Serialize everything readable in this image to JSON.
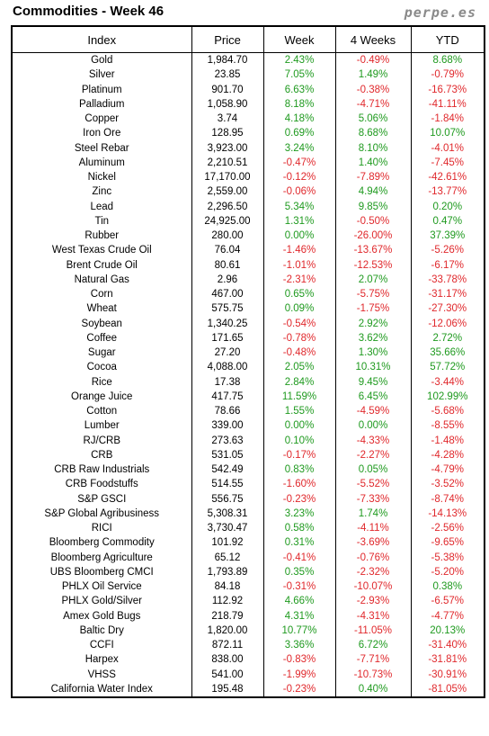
{
  "header": {
    "title": "Commodities - Week 46",
    "brand": "perpe.es"
  },
  "table": {
    "columns": [
      "Index",
      "Price",
      "Week",
      "4 Weeks",
      "YTD"
    ],
    "rows": [
      [
        "Gold",
        "1,984.70",
        "2.43%",
        "-0.49%",
        "8.68%"
      ],
      [
        "Silver",
        "23.85",
        "7.05%",
        "1.49%",
        "-0.79%"
      ],
      [
        "Platinum",
        "901.70",
        "6.63%",
        "-0.38%",
        "-16.73%"
      ],
      [
        "Palladium",
        "1,058.90",
        "8.18%",
        "-4.71%",
        "-41.11%"
      ],
      [
        "Copper",
        "3.74",
        "4.18%",
        "5.06%",
        "-1.84%"
      ],
      [
        "Iron Ore",
        "128.95",
        "0.69%",
        "8.68%",
        "10.07%"
      ],
      [
        "Steel Rebar",
        "3,923.00",
        "3.24%",
        "8.10%",
        "-4.01%"
      ],
      [
        "Aluminum",
        "2,210.51",
        "-0.47%",
        "1.40%",
        "-7.45%"
      ],
      [
        "Nickel",
        "17,170.00",
        "-0.12%",
        "-7.89%",
        "-42.61%"
      ],
      [
        "Zinc",
        "2,559.00",
        "-0.06%",
        "4.94%",
        "-13.77%"
      ],
      [
        "Lead",
        "2,296.50",
        "5.34%",
        "9.85%",
        "0.20%"
      ],
      [
        "Tin",
        "24,925.00",
        "1.31%",
        "-0.50%",
        "0.47%"
      ],
      [
        "Rubber",
        "280.00",
        "0.00%",
        "-26.00%",
        "37.39%"
      ],
      [
        "West Texas Crude Oil",
        "76.04",
        "-1.46%",
        "-13.67%",
        "-5.26%"
      ],
      [
        "Brent Crude Oil",
        "80.61",
        "-1.01%",
        "-12.53%",
        "-6.17%"
      ],
      [
        "Natural Gas",
        "2.96",
        "-2.31%",
        "2.07%",
        "-33.78%"
      ],
      [
        "Corn",
        "467.00",
        "0.65%",
        "-5.75%",
        "-31.17%"
      ],
      [
        "Wheat",
        "575.75",
        "0.09%",
        "-1.75%",
        "-27.30%"
      ],
      [
        "Soybean",
        "1,340.25",
        "-0.54%",
        "2.92%",
        "-12.06%"
      ],
      [
        "Coffee",
        "171.65",
        "-0.78%",
        "3.62%",
        "2.72%"
      ],
      [
        "Sugar",
        "27.20",
        "-0.48%",
        "1.30%",
        "35.66%"
      ],
      [
        "Cocoa",
        "4,088.00",
        "2.05%",
        "10.31%",
        "57.72%"
      ],
      [
        "Rice",
        "17.38",
        "2.84%",
        "9.45%",
        "-3.44%"
      ],
      [
        "Orange Juice",
        "417.75",
        "11.59%",
        "6.45%",
        "102.99%"
      ],
      [
        "Cotton",
        "78.66",
        "1.55%",
        "-4.59%",
        "-5.68%"
      ],
      [
        "Lumber",
        "339.00",
        "0.00%",
        "0.00%",
        "-8.55%"
      ],
      [
        "RJ/CRB",
        "273.63",
        "0.10%",
        "-4.33%",
        "-1.48%"
      ],
      [
        "CRB",
        "531.05",
        "-0.17%",
        "-2.27%",
        "-4.28%"
      ],
      [
        "CRB Raw Industrials",
        "542.49",
        "0.83%",
        "0.05%",
        "-4.79%"
      ],
      [
        "CRB Foodstuffs",
        "514.55",
        "-1.60%",
        "-5.52%",
        "-3.52%"
      ],
      [
        "S&P GSCI",
        "556.75",
        "-0.23%",
        "-7.33%",
        "-8.74%"
      ],
      [
        "S&P Global Agribusiness",
        "5,308.31",
        "3.23%",
        "1.74%",
        "-14.13%"
      ],
      [
        "RICI",
        "3,730.47",
        "0.58%",
        "-4.11%",
        "-2.56%"
      ],
      [
        "Bloomberg Commodity",
        "101.92",
        "0.31%",
        "-3.69%",
        "-9.65%"
      ],
      [
        "Bloomberg Agriculture",
        "65.12",
        "-0.41%",
        "-0.76%",
        "-5.38%"
      ],
      [
        "UBS Bloomberg CMCI",
        "1,793.89",
        "0.35%",
        "-2.32%",
        "-5.20%"
      ],
      [
        "PHLX Oil Service",
        "84.18",
        "-0.31%",
        "-10.07%",
        "0.38%"
      ],
      [
        "PHLX Gold/Silver",
        "112.92",
        "4.66%",
        "-2.93%",
        "-6.57%"
      ],
      [
        "Amex Gold Bugs",
        "218.79",
        "4.31%",
        "-4.31%",
        "-4.77%"
      ],
      [
        "Baltic Dry",
        "1,820.00",
        "10.77%",
        "-11.05%",
        "20.13%"
      ],
      [
        "CCFI",
        "872.11",
        "3.36%",
        "6.72%",
        "-31.40%"
      ],
      [
        "Harpex",
        "838.00",
        "-0.83%",
        "-7.71%",
        "-31.81%"
      ],
      [
        "VHSS",
        "541.00",
        "-1.99%",
        "-10.73%",
        "-30.91%"
      ],
      [
        "California Water Index",
        "195.48",
        "-0.23%",
        "0.40%",
        "-81.05%"
      ]
    ]
  },
  "colors": {
    "positive": "#1f9a1f",
    "negative": "#e0282c"
  }
}
